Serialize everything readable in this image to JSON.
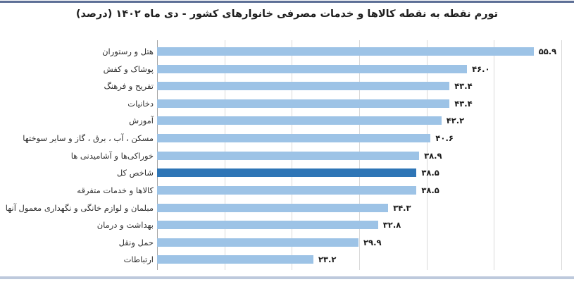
{
  "page": {
    "title": "تورم نقطه به نقطه کالاها و خدمات مصرفی خانوارهای کشور - دی ماه ۱۴۰۲ (درصد)"
  },
  "colors": {
    "bar": "#9DC3E6",
    "highlight_bar": "#2E75B6",
    "gridline": "#D9D9D9",
    "axis_line": "#A6A6A6",
    "title_text": "#1F1F1F",
    "top_border": "#5D6F96",
    "bottom_border": "#BDC9DC"
  },
  "chart_data": {
    "type": "bar",
    "orientation": "horizontal",
    "direction": "rtl-labels",
    "title": "تورم نقطه به نقطه کالاها و خدمات مصرفی خانوارهای کشور - دی ماه ۱۴۰۲ (درصد)",
    "unit": "درصد",
    "grid": true,
    "xlim": [
      0,
      60
    ],
    "gridline_interval": 10,
    "highlight_index": 7,
    "highlight_category": "شاخص کل",
    "categories": [
      "هتل و رستوران",
      "پوشاک و کفش",
      "تفریح و فرهنگ",
      "دخانیات",
      "آموزش",
      "مسکن ، آب ، برق ، گاز و سایر سوختها",
      "خوراکی‌ها و آشامیدنی ها",
      "شاخص کل",
      "کالاها و خدمات متفرقه",
      "مبلمان و لوازم خانگی و نگهداری معمول آنها",
      "بهداشت و درمان",
      "حمل ونقل",
      "ارتباطات"
    ],
    "values": [
      55.9,
      46.0,
      43.4,
      43.4,
      42.2,
      40.6,
      38.9,
      38.5,
      38.5,
      34.3,
      32.8,
      29.9,
      23.2
    ],
    "value_labels": [
      "۵۵.۹",
      "۴۶.۰",
      "۴۳.۴",
      "۴۳.۴",
      "۴۲.۲",
      "۴۰.۶",
      "۳۸.۹",
      "۳۸.۵",
      "۳۸.۵",
      "۳۴.۳",
      "۳۲.۸",
      "۲۹.۹",
      "۲۳.۲"
    ]
  }
}
